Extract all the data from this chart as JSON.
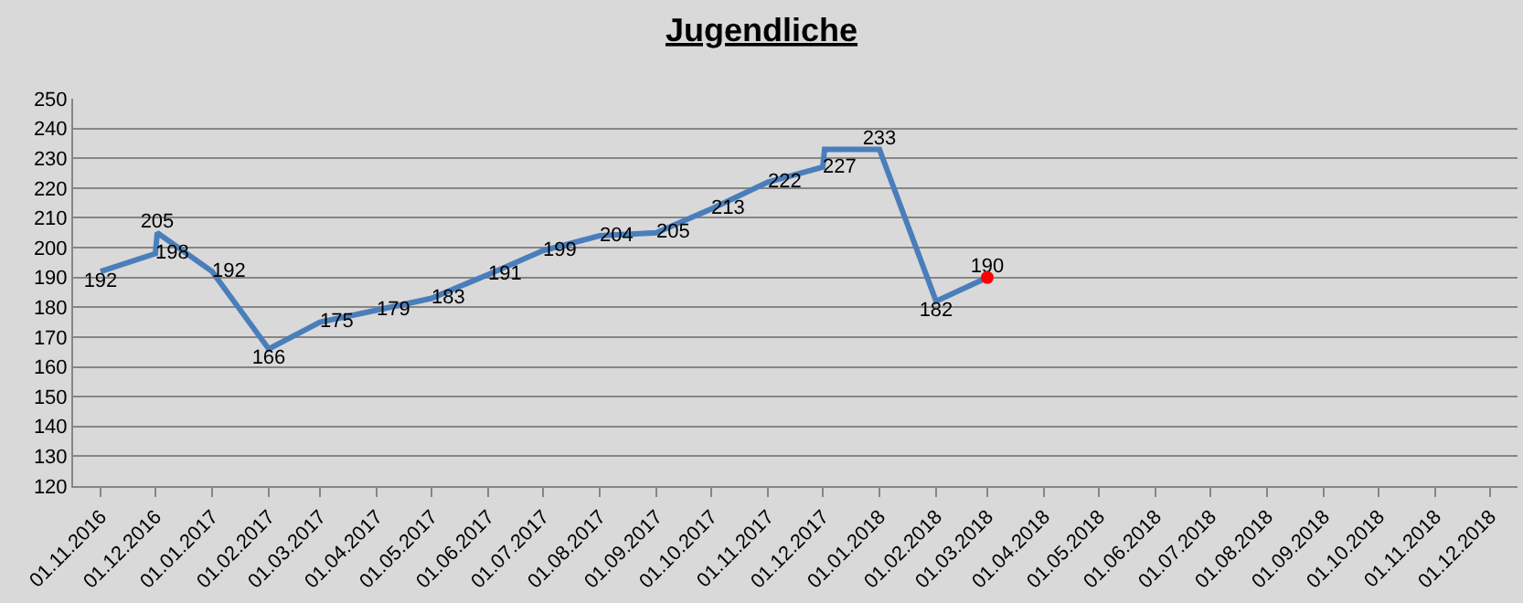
{
  "chart_data": {
    "type": "line",
    "title": "Jugendliche",
    "x": [
      "2016-11-01",
      "2016-12-01",
      "2016-12-02",
      "2017-01-01",
      "2017-02-01",
      "2017-03-01",
      "2017-04-01",
      "2017-05-01",
      "2017-06-01",
      "2017-07-01",
      "2017-08-01",
      "2017-09-01",
      "2017-10-01",
      "2017-11-01",
      "2017-12-01",
      "2017-12-02",
      "2018-01-01",
      "2018-02-01",
      "2018-03-01"
    ],
    "series": [
      {
        "color": "#4a7ebb",
        "marker": "none",
        "values": [
          192,
          198,
          205,
          192,
          166,
          175,
          179,
          183,
          191,
          199,
          204,
          205,
          213,
          222,
          227,
          233,
          233,
          182,
          190
        ],
        "value_labels": [
          "192",
          "198",
          "205",
          "192",
          "166",
          "175",
          "179",
          "183",
          "191",
          "199",
          "204",
          "205",
          "213",
          "222",
          "227",
          null,
          "233",
          "182",
          "190"
        ]
      },
      {
        "type": "scatter",
        "color": "#ff0000",
        "marker": "circle",
        "x": [
          "2018-03-01"
        ],
        "values": [
          190
        ]
      }
    ],
    "xlim": [
      "2016-10-17",
      "2018-12-16"
    ],
    "xticks": [
      {
        "value": "2016-11-01",
        "label": "01.11.2016"
      },
      {
        "value": "2016-12-01",
        "label": "01.12.2016"
      },
      {
        "value": "2017-01-01",
        "label": "01.01.2017"
      },
      {
        "value": "2017-02-01",
        "label": "01.02.2017"
      },
      {
        "value": "2017-03-01",
        "label": "01.03.2017"
      },
      {
        "value": "2017-04-01",
        "label": "01.04.2017"
      },
      {
        "value": "2017-05-01",
        "label": "01.05.2017"
      },
      {
        "value": "2017-06-01",
        "label": "01.06.2017"
      },
      {
        "value": "2017-07-01",
        "label": "01.07.2017"
      },
      {
        "value": "2017-08-01",
        "label": "01.08.2017"
      },
      {
        "value": "2017-09-01",
        "label": "01.09.2017"
      },
      {
        "value": "2017-10-01",
        "label": "01.10.2017"
      },
      {
        "value": "2017-11-01",
        "label": "01.11.2017"
      },
      {
        "value": "2017-12-01",
        "label": "01.12.2017"
      },
      {
        "value": "2018-01-01",
        "label": "01.01.2018"
      },
      {
        "value": "2018-02-01",
        "label": "01.02.2018"
      },
      {
        "value": "2018-03-01",
        "label": "01.03.2018"
      },
      {
        "value": "2018-04-01",
        "label": "01.04.2018"
      },
      {
        "value": "2018-05-01",
        "label": "01.05.2018"
      },
      {
        "value": "2018-06-01",
        "label": "01.06.2018"
      },
      {
        "value": "2018-07-01",
        "label": "01.07.2018"
      },
      {
        "value": "2018-08-01",
        "label": "01.08.2018"
      },
      {
        "value": "2018-09-01",
        "label": "01.09.2018"
      },
      {
        "value": "2018-10-01",
        "label": "01.10.2018"
      },
      {
        "value": "2018-11-01",
        "label": "01.11.2018"
      },
      {
        "value": "2018-12-01",
        "label": "01.12.2018"
      }
    ],
    "ylim": [
      120,
      250
    ],
    "yticks": [
      120,
      130,
      140,
      150,
      160,
      170,
      180,
      190,
      200,
      210,
      220,
      230,
      240,
      250
    ],
    "grid": "y"
  }
}
